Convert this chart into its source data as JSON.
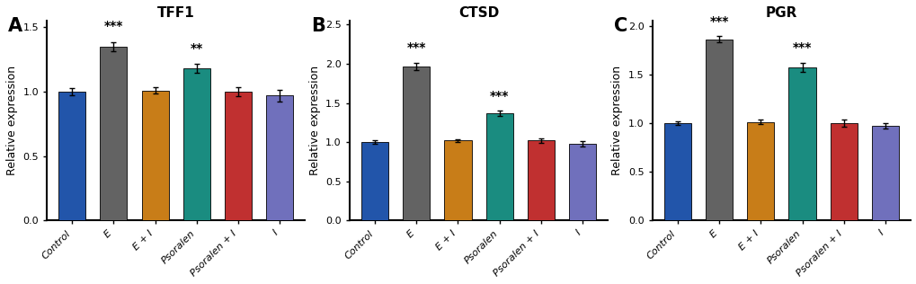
{
  "panels": [
    {
      "label": "A",
      "title": "TFF1",
      "ylabel": "Relative expression",
      "categories": [
        "Control",
        "E",
        "E + I",
        "Psoralen",
        "Psoralen + I",
        "I"
      ],
      "values": [
        1.0,
        1.35,
        1.01,
        1.18,
        1.0,
        0.97
      ],
      "errors": [
        0.025,
        0.035,
        0.025,
        0.035,
        0.035,
        0.045
      ],
      "colors": [
        "#2255aa",
        "#636363",
        "#c87d18",
        "#1a8c80",
        "#c03030",
        "#7070bc"
      ],
      "ylim": [
        0,
        1.55
      ],
      "yticks": [
        0,
        0.5,
        1.0,
        1.5
      ],
      "sig_labels": [
        "",
        "***",
        "",
        "**",
        "",
        ""
      ],
      "sig_fontsize": 10
    },
    {
      "label": "B",
      "title": "CTSD",
      "ylabel": "Relative expression",
      "categories": [
        "Control",
        "E",
        "E + I",
        "Psoralen",
        "Psoralen + I",
        "I"
      ],
      "values": [
        1.0,
        1.97,
        1.02,
        1.37,
        1.02,
        0.98
      ],
      "errors": [
        0.02,
        0.045,
        0.018,
        0.038,
        0.025,
        0.035
      ],
      "colors": [
        "#2255aa",
        "#636363",
        "#c87d18",
        "#1a8c80",
        "#c03030",
        "#7070bc"
      ],
      "ylim": [
        0,
        2.55
      ],
      "yticks": [
        0,
        0.5,
        1.0,
        1.5,
        2.0,
        2.5
      ],
      "sig_labels": [
        "",
        "***",
        "",
        "***",
        "",
        ""
      ],
      "sig_fontsize": 10
    },
    {
      "label": "C",
      "title": "PGR",
      "ylabel": "Relative expression",
      "categories": [
        "Control",
        "E",
        "E + I",
        "Psoralen",
        "Psoralen + I",
        "I"
      ],
      "values": [
        1.0,
        1.86,
        1.01,
        1.57,
        1.0,
        0.97
      ],
      "errors": [
        0.018,
        0.032,
        0.022,
        0.045,
        0.038,
        0.025
      ],
      "colors": [
        "#2255aa",
        "#636363",
        "#c87d18",
        "#1a8c80",
        "#c03030",
        "#7070bc"
      ],
      "ylim": [
        0,
        2.05
      ],
      "yticks": [
        0,
        0.5,
        1.0,
        1.5,
        2.0
      ],
      "sig_labels": [
        "",
        "***",
        "",
        "***",
        "",
        ""
      ],
      "sig_fontsize": 10
    }
  ],
  "fig_width": 10.2,
  "fig_height": 3.16,
  "dpi": 100,
  "background_color": "#ffffff",
  "tick_labelsize": 8,
  "axis_labelsize": 9,
  "title_fontsize": 11,
  "panel_label_fontsize": 15,
  "bar_width": 0.65,
  "error_capsize": 2.5,
  "error_linewidth": 1.0,
  "error_color": "black"
}
